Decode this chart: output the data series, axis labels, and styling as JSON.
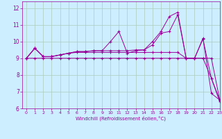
{
  "xlabel": "Windchill (Refroidissement éolien,°C)",
  "bg_color": "#cceeff",
  "line_color": "#990099",
  "grid_color": "#aaccbb",
  "xlim": [
    -0.5,
    23
  ],
  "ylim": [
    6,
    12.4
  ],
  "yticks": [
    6,
    7,
    8,
    9,
    10,
    11,
    12
  ],
  "xticks": [
    0,
    1,
    2,
    3,
    4,
    5,
    6,
    7,
    8,
    9,
    10,
    11,
    12,
    13,
    14,
    15,
    16,
    17,
    18,
    19,
    20,
    21,
    22,
    23
  ],
  "series": [
    [
      9.0,
      9.6,
      9.1,
      9.1,
      9.2,
      9.3,
      9.4,
      9.4,
      9.45,
      9.45,
      10.0,
      10.6,
      9.3,
      9.45,
      9.5,
      10.0,
      10.6,
      11.5,
      11.75,
      9.0,
      9.0,
      10.15,
      7.8,
      6.4
    ],
    [
      9.0,
      9.6,
      9.1,
      9.1,
      9.2,
      9.3,
      9.4,
      9.4,
      9.45,
      9.45,
      9.45,
      9.45,
      9.45,
      9.5,
      9.5,
      9.8,
      10.5,
      10.6,
      11.6,
      9.0,
      9.0,
      10.2,
      6.9,
      6.5
    ],
    [
      9.0,
      9.0,
      9.0,
      9.0,
      9.0,
      9.0,
      9.0,
      9.0,
      9.0,
      9.0,
      9.0,
      9.0,
      9.0,
      9.0,
      9.0,
      9.0,
      9.0,
      9.0,
      9.0,
      9.0,
      9.0,
      9.0,
      7.8,
      6.5
    ],
    [
      9.0,
      9.6,
      9.1,
      9.1,
      9.2,
      9.3,
      9.35,
      9.35,
      9.35,
      9.35,
      9.35,
      9.35,
      9.35,
      9.35,
      9.35,
      9.35,
      9.35,
      9.35,
      9.35,
      9.0,
      9.0,
      9.0,
      9.0,
      6.5
    ]
  ]
}
